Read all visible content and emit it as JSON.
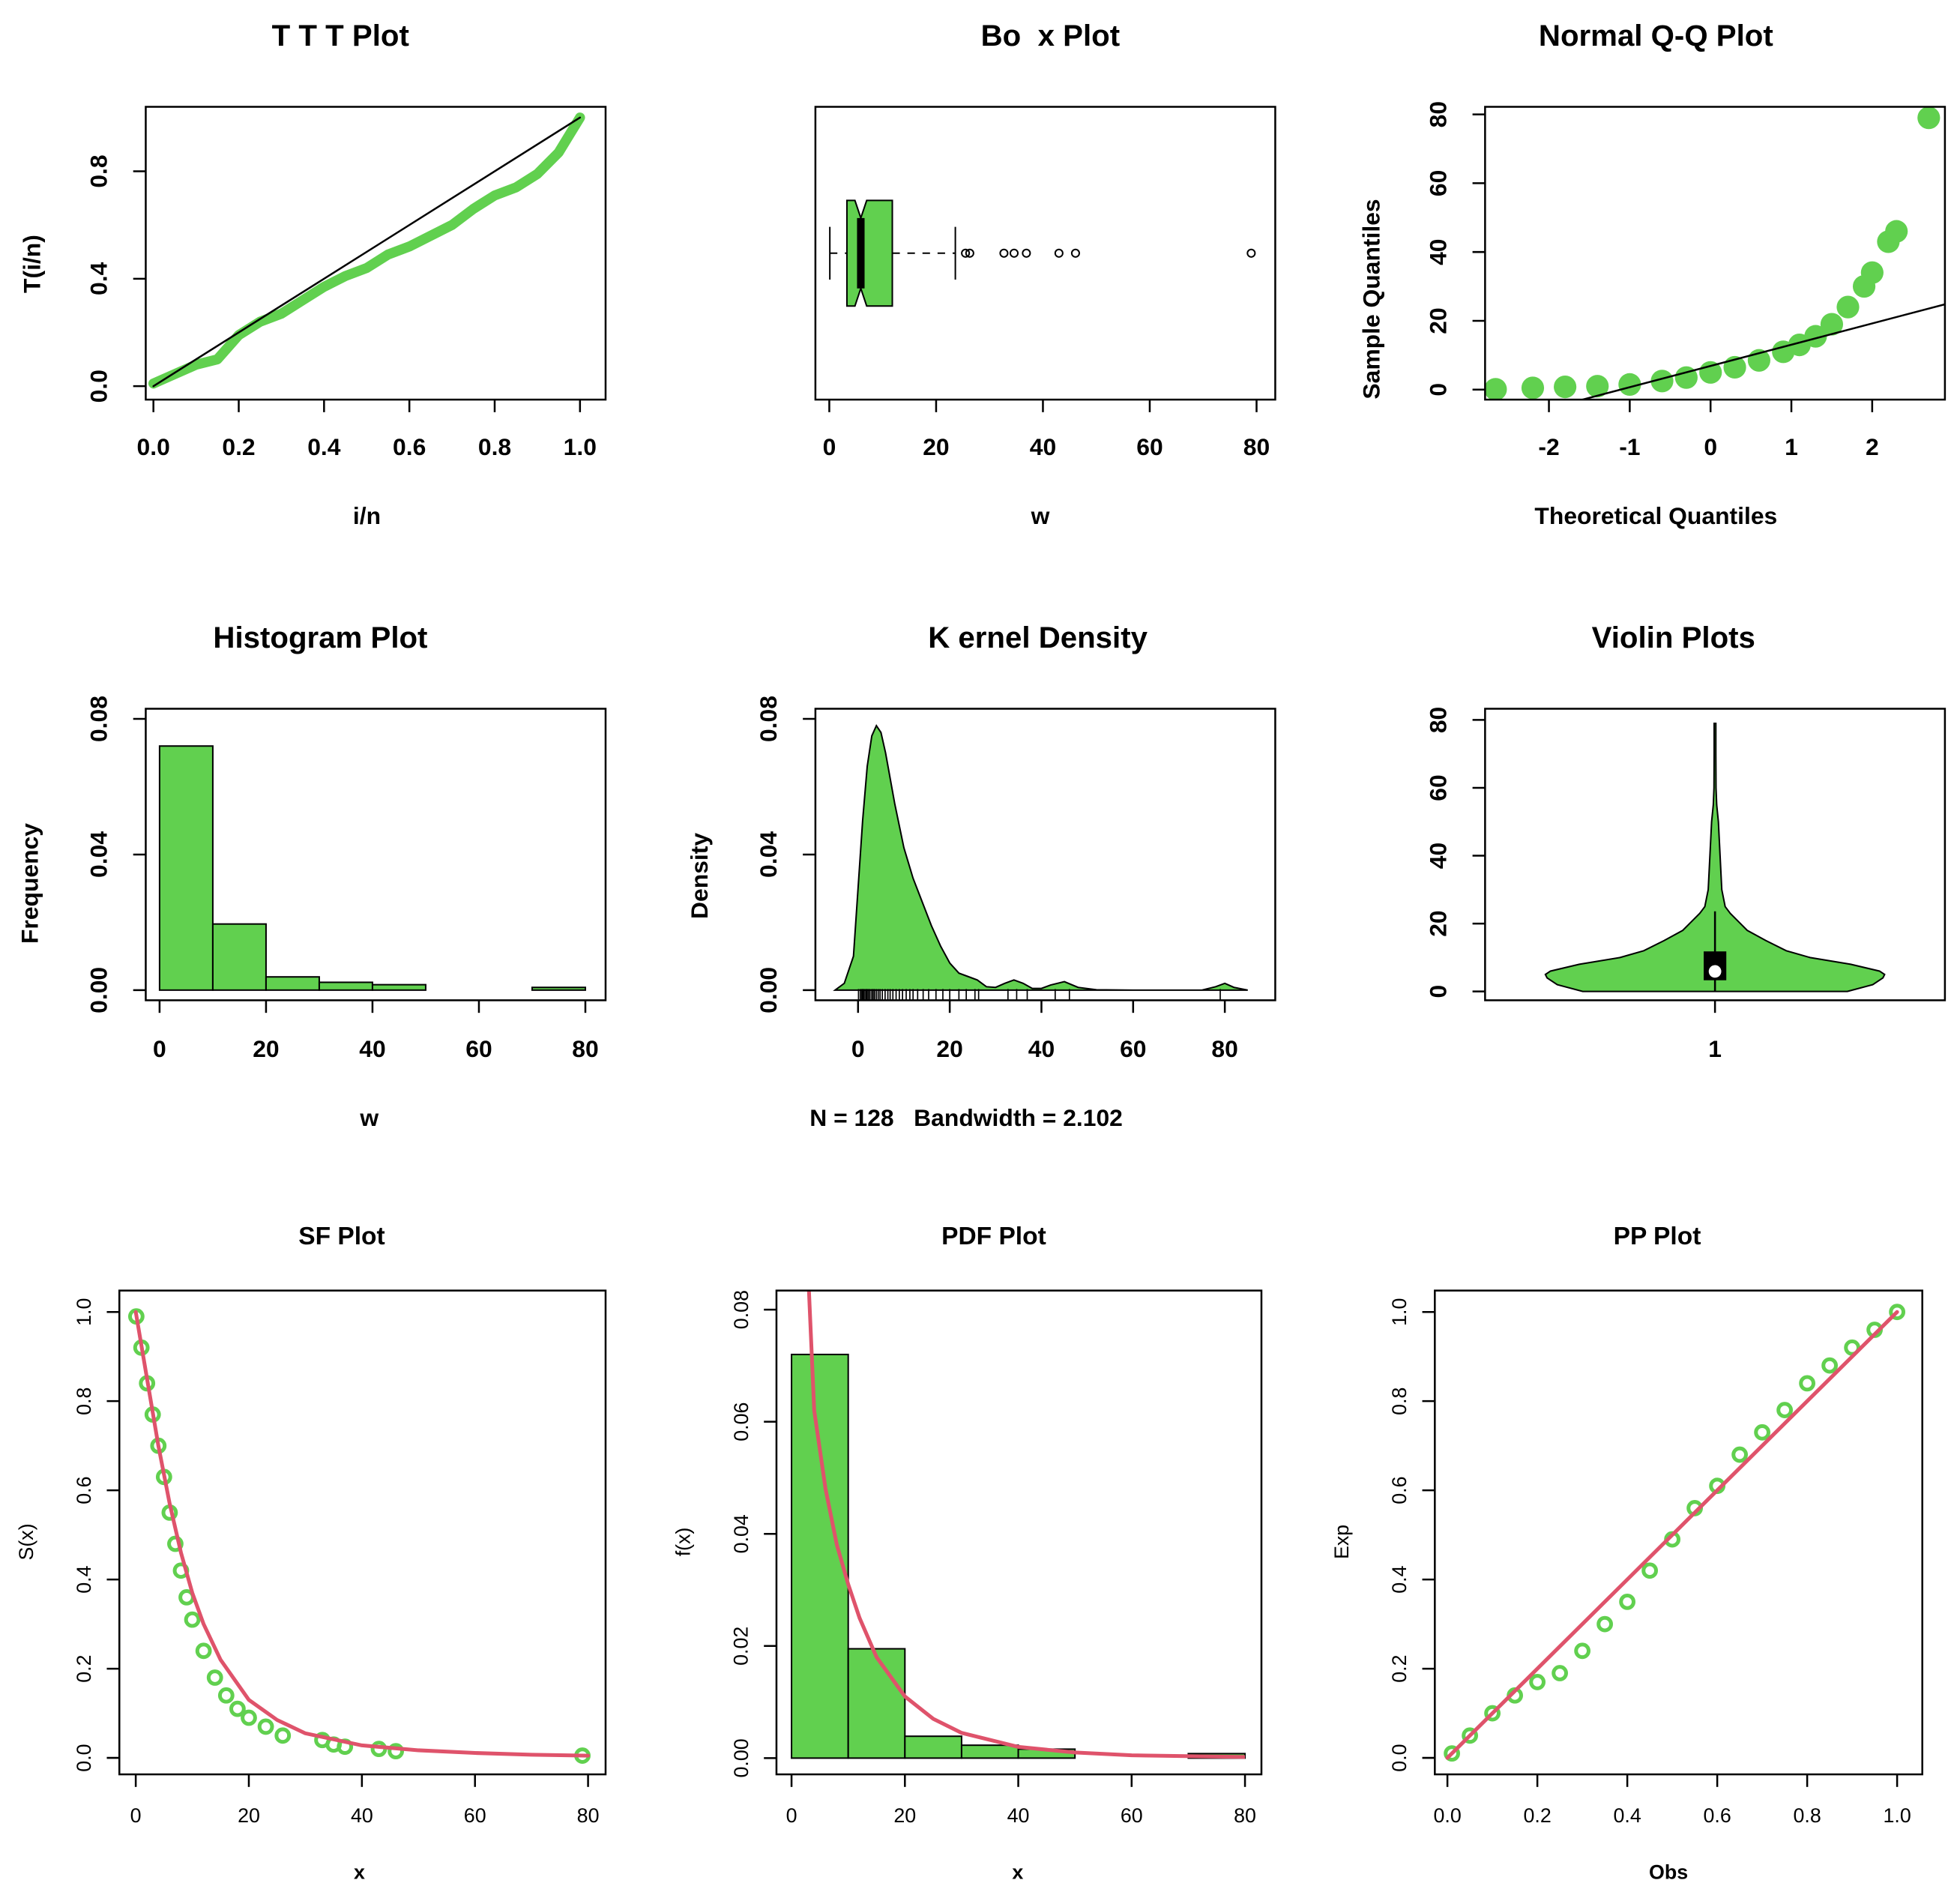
{
  "chart_data": [
    {
      "type": "line",
      "title": "T T T Plot",
      "xlabel": "i/n",
      "ylabel": "T(i/n)",
      "xlim": [
        -0.018,
        1.06
      ],
      "ylim": [
        -0.05,
        1.04
      ],
      "xticks": [
        {
          "value": 0,
          "label": "0.0"
        },
        0.2,
        0.4,
        0.6,
        0.8,
        {
          "value": 1,
          "label": "1.0"
        }
      ],
      "yticks": [
        {
          "value": 0,
          "label": "0.0"
        },
        0.4,
        0.8
      ],
      "series": [
        {
          "color": "#61d04f",
          "style": "line",
          "width": 8,
          "x": [
            0.0,
            0.1,
            0.15,
            0.2,
            0.25,
            0.3,
            0.35,
            0.4,
            0.45,
            0.5,
            0.55,
            0.6,
            0.65,
            0.7,
            0.75,
            0.8,
            0.85,
            0.9,
            0.95,
            1.0
          ],
          "values": [
            0.01,
            0.08,
            0.1,
            0.19,
            0.24,
            0.27,
            0.32,
            0.37,
            0.41,
            0.44,
            0.49,
            0.52,
            0.56,
            0.6,
            0.66,
            0.71,
            0.74,
            0.79,
            0.87,
            1.0
          ]
        },
        {
          "color": "#000000",
          "style": "line",
          "width": 1.5,
          "x": [
            0,
            1
          ],
          "values": [
            0,
            1
          ]
        }
      ]
    },
    {
      "type": "box",
      "title": "Bo  x Plot",
      "xlabel": "w",
      "xlim": [
        -2.6,
        83.5
      ],
      "xticks": [
        0,
        20,
        40,
        60,
        80
      ],
      "color": "#61d04f",
      "box": {
        "lower": 0.1,
        "q1": 3.3,
        "median": 5.9,
        "q3": 11.8,
        "upper": 23.6,
        "notch": [
          4.8,
          7.0
        ]
      },
      "outliers": [
        25.5,
        26.3,
        32.7,
        34.6,
        36.9,
        43.0,
        46.1,
        79.0
      ]
    },
    {
      "type": "scatter",
      "title": "Normal Q-Q Plot",
      "xlabel": "Theoretical Quantiles",
      "ylabel": "Sample Quantiles",
      "xlim": [
        -2.79,
        2.9
      ],
      "ylim": [
        -2.9,
        82.2
      ],
      "xticks": [
        -2,
        -1,
        0,
        1,
        2
      ],
      "yticks": [
        0,
        20,
        40,
        60,
        80
      ],
      "series": [
        {
          "color": "#61d04f",
          "style": "points",
          "size": 9,
          "fill": true,
          "x": [
            -2.66,
            -2.2,
            -1.8,
            -1.4,
            -1.0,
            -0.6,
            -0.3,
            0,
            0.3,
            0.6,
            0.9,
            1.1,
            1.3,
            1.5,
            1.7,
            1.9,
            2.0,
            2.2,
            2.3,
            2.7
          ],
          "values": [
            0.1,
            0.5,
            0.8,
            1.0,
            1.5,
            2.5,
            3.5,
            5,
            6.5,
            8.5,
            11,
            13,
            15.5,
            19,
            24,
            30,
            34,
            43,
            46,
            79
          ]
        },
        {
          "color": "#000000",
          "style": "line",
          "width": 1.5,
          "x": [
            -1.6,
            2.9
          ],
          "values": [
            -3,
            24.8
          ]
        }
      ]
    },
    {
      "type": "histogram",
      "title": "Histogram Plot",
      "xlabel": "w",
      "ylabel": "Frequency",
      "xlim": [
        -2.6,
        83.8
      ],
      "ylim": [
        -0.003,
        0.083
      ],
      "xticks": [
        0,
        20,
        40,
        60,
        80
      ],
      "yticks": [
        {
          "value": 0,
          "label": "0.00"
        },
        0.04,
        0.08
      ],
      "color": "#61d04f",
      "bins": [
        0,
        10,
        20,
        30,
        40,
        50,
        60,
        70,
        80
      ],
      "values": [
        0.072,
        0.0195,
        0.0039,
        0.0023,
        0.0016,
        0,
        0,
        0.0008
      ]
    },
    {
      "type": "density",
      "title": "K ernel Density",
      "subtitle": "N = 128   Bandwidth = 2.102",
      "ylabel": "Density",
      "xlim": [
        -9.3,
        91
      ],
      "ylim": [
        -0.003,
        0.083
      ],
      "xticks": [
        0,
        20,
        40,
        60,
        80
      ],
      "yticks": [
        {
          "value": 0,
          "label": "0.00"
        },
        0.04,
        0.08
      ],
      "color": "#61d04f",
      "x": [
        -5,
        -3,
        -1,
        0,
        1,
        2,
        3,
        4,
        5,
        6,
        8,
        10,
        12,
        14,
        16,
        18,
        20,
        22,
        24,
        26,
        28,
        30,
        32,
        34,
        36,
        38,
        40,
        42,
        45,
        48,
        52,
        60,
        75,
        78,
        80,
        82,
        85
      ],
      "values": [
        0,
        0.002,
        0.01,
        0.03,
        0.05,
        0.066,
        0.075,
        0.078,
        0.076,
        0.07,
        0.055,
        0.042,
        0.033,
        0.026,
        0.019,
        0.013,
        0.008,
        0.005,
        0.004,
        0.003,
        0.001,
        0.0008,
        0.002,
        0.003,
        0.002,
        0.0005,
        0.0005,
        0.0015,
        0.0025,
        0.0008,
        0.0001,
        0,
        0,
        0.001,
        0.002,
        0.0008,
        0
      ],
      "rug": [
        0.1,
        0.5,
        0.8,
        1.0,
        1.2,
        1.5,
        1.8,
        2.0,
        2.3,
        2.6,
        3.0,
        3.3,
        3.6,
        4.0,
        4.4,
        4.8,
        5.3,
        5.9,
        6.5,
        7.0,
        7.6,
        8.3,
        9.0,
        9.7,
        10.5,
        11.3,
        12.0,
        13.0,
        14.2,
        15.4,
        17.0,
        18.5,
        20.0,
        22.0,
        23.6,
        25.5,
        26.3,
        32.7,
        34.6,
        36.9,
        43.0,
        46.1,
        79.0
      ]
    },
    {
      "type": "violin",
      "title": "Violin Plots",
      "categories": [
        "1"
      ],
      "ylim": [
        -2.6,
        83.3
      ],
      "yticks": [
        0,
        20,
        40,
        60,
        80
      ],
      "color": "#61d04f",
      "profile": {
        "y": [
          0,
          2,
          4,
          5,
          6,
          8,
          10,
          12,
          15,
          18,
          20,
          23,
          25,
          30,
          35,
          40,
          45,
          50,
          55,
          60,
          70,
          79
        ],
        "width": [
          0.78,
          0.93,
          0.99,
          1.0,
          0.97,
          0.8,
          0.56,
          0.42,
          0.3,
          0.19,
          0.15,
          0.09,
          0.06,
          0.04,
          0.035,
          0.03,
          0.025,
          0.02,
          0.01,
          0.006,
          0.005,
          0.005
        ]
      },
      "box": {
        "lower": 0.1,
        "q1": 3.3,
        "median": 5.9,
        "q3": 11.8,
        "upper": 23.6
      }
    },
    {
      "type": "line",
      "title": "SF Plot",
      "xlabel": "x",
      "ylabel": "S(x)",
      "xlim": [
        -2.9,
        83.1
      ],
      "ylim": [
        -0.037,
        1.048
      ],
      "xticks": [
        0,
        20,
        40,
        60,
        80
      ],
      "yticks": [
        {
          "value": 0,
          "label": "0.0"
        },
        0.2,
        0.4,
        0.6,
        0.8,
        {
          "value": 1,
          "label": "1.0"
        }
      ],
      "series": [
        {
          "color": "#61d04f",
          "style": "points",
          "size": 5,
          "fill": false,
          "x": [
            0.1,
            1,
            2,
            3,
            4,
            5,
            6,
            7,
            8,
            9,
            10,
            12,
            14,
            16,
            18,
            20,
            23,
            26,
            33,
            35,
            37,
            43,
            46,
            79
          ],
          "values": [
            0.99,
            0.92,
            0.84,
            0.77,
            0.7,
            0.63,
            0.55,
            0.48,
            0.42,
            0.36,
            0.31,
            0.24,
            0.18,
            0.14,
            0.11,
            0.09,
            0.07,
            0.05,
            0.04,
            0.03,
            0.025,
            0.02,
            0.015,
            0.005
          ]
        },
        {
          "color": "#df536b",
          "style": "line",
          "width": 3,
          "x": [
            0,
            2,
            4,
            6,
            8,
            10,
            12,
            15,
            20,
            25,
            30,
            40,
            50,
            60,
            70,
            80
          ],
          "values": [
            1,
            0.85,
            0.7,
            0.57,
            0.46,
            0.37,
            0.3,
            0.22,
            0.13,
            0.085,
            0.055,
            0.028,
            0.017,
            0.011,
            0.007,
            0.005
          ]
        }
      ]
    },
    {
      "type": "histogram",
      "title": "PDF Plot",
      "xlabel": "x",
      "ylabel": "f(x)",
      "xlim": [
        -2.66,
        82.9
      ],
      "ylim": [
        -0.0029,
        0.0834
      ],
      "xticks": [
        0,
        20,
        40,
        60,
        80
      ],
      "yticks": [
        {
          "value": 0,
          "label": "0.00"
        },
        0.02,
        0.04,
        0.06,
        0.08
      ],
      "color": "#61d04f",
      "bins": [
        0,
        10,
        20,
        30,
        40,
        50,
        60,
        70,
        80
      ],
      "values": [
        0.072,
        0.0195,
        0.0039,
        0.0023,
        0.0016,
        0,
        0,
        0.0008
      ],
      "curve": {
        "color": "#df536b",
        "width": 3,
        "x": [
          3,
          4,
          6,
          8,
          10,
          12,
          15,
          20,
          25,
          30,
          40,
          50,
          60,
          80
        ],
        "values": [
          0.085,
          0.062,
          0.048,
          0.038,
          0.031,
          0.025,
          0.018,
          0.011,
          0.007,
          0.0045,
          0.002,
          0.001,
          0.0005,
          0.0002
        ]
      }
    },
    {
      "type": "scatter",
      "title": "PP Plot",
      "xlabel": "Obs",
      "ylabel": "Exp",
      "xlim": [
        -0.028,
        1.056
      ],
      "ylim": [
        -0.037,
        1.048
      ],
      "xticks": [
        {
          "value": 0,
          "label": "0.0"
        },
        0.2,
        0.4,
        0.6,
        0.8,
        {
          "value": 1,
          "label": "1.0"
        }
      ],
      "yticks": [
        {
          "value": 0,
          "label": "0.0"
        },
        0.2,
        0.4,
        0.6,
        0.8,
        {
          "value": 1,
          "label": "1.0"
        }
      ],
      "series": [
        {
          "color": "#61d04f",
          "style": "points",
          "size": 5,
          "fill": false,
          "x": [
            0.01,
            0.05,
            0.1,
            0.15,
            0.2,
            0.25,
            0.3,
            0.35,
            0.4,
            0.45,
            0.5,
            0.55,
            0.6,
            0.65,
            0.7,
            0.75,
            0.8,
            0.85,
            0.9,
            0.95,
            1.0
          ],
          "values": [
            0.01,
            0.05,
            0.1,
            0.14,
            0.17,
            0.19,
            0.24,
            0.3,
            0.35,
            0.42,
            0.49,
            0.56,
            0.61,
            0.68,
            0.73,
            0.78,
            0.84,
            0.88,
            0.92,
            0.96,
            1.0
          ]
        },
        {
          "color": "#df536b",
          "style": "line",
          "width": 3,
          "x": [
            0,
            1
          ],
          "values": [
            0,
            1
          ]
        }
      ]
    }
  ]
}
